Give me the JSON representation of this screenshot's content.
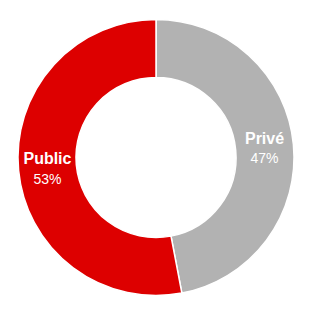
{
  "chart_data": {
    "type": "donut",
    "categories": [
      "Privé",
      "Public"
    ],
    "values": [
      47,
      53
    ],
    "value_labels": [
      "47%",
      "53%"
    ],
    "colors": [
      "#b2b2b2",
      "#dd0000"
    ],
    "data_labels": true
  }
}
